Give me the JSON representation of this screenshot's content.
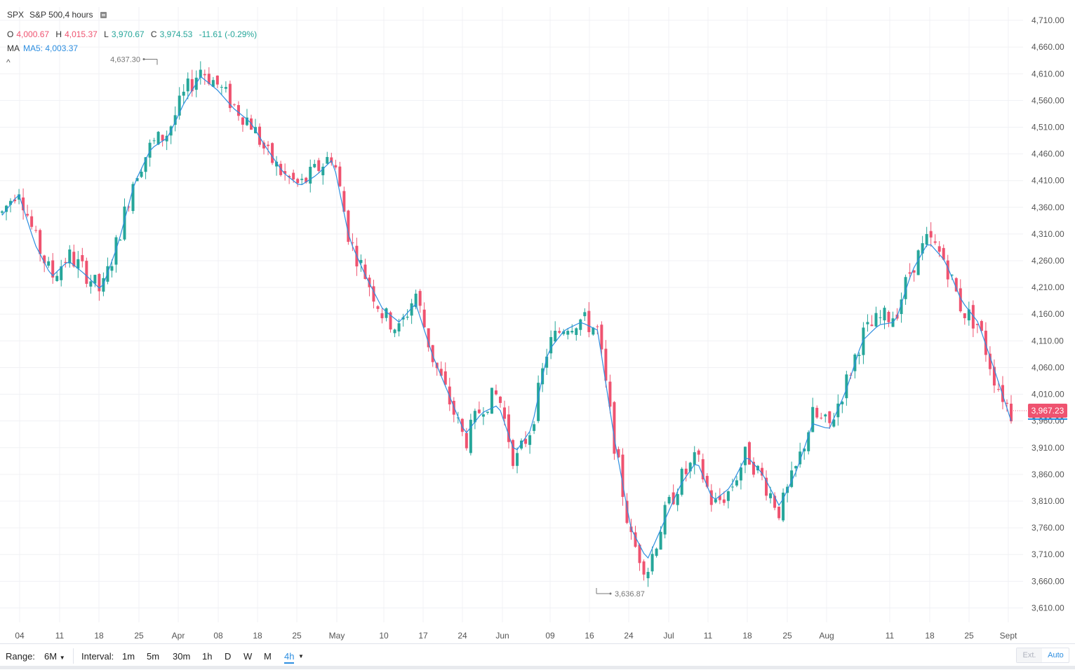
{
  "header": {
    "symbol": "SPX",
    "description": "S&P 500,4 hours"
  },
  "ohlc": {
    "o_label": "O",
    "o_value": "4,000.67",
    "h_label": "H",
    "h_value": "4,015.37",
    "l_label": "L",
    "l_value": "3,970.67",
    "c_label": "C",
    "c_value": "3,974.53",
    "change": "-11.61 (-0.29%)"
  },
  "ma": {
    "label": "MA",
    "value": "MA5: 4,003.37"
  },
  "collapse_icon": "^",
  "last_price": "3,967.23",
  "toolbar": {
    "range_label": "Range:",
    "range_value": "6M",
    "interval_label": "Interval:",
    "intervals": [
      "1m",
      "5m",
      "30m",
      "1h",
      "D",
      "W",
      "M",
      "4h"
    ],
    "active_interval": "4h",
    "ext_label": "Ext.",
    "auto_label": "Auto"
  },
  "colors": {
    "up": "#26a69a",
    "down": "#ef5370",
    "ma": "#2d8ee0",
    "grid": "#f0f1f4"
  },
  "chart_data": {
    "type": "candlestick",
    "title": "SPX S&P 500,4 hours",
    "y_ticks": [
      "4,710.00",
      "4,660.00",
      "4,610.00",
      "4,560.00",
      "4,510.00",
      "4,460.00",
      "4,410.00",
      "4,360.00",
      "4,310.00",
      "4,260.00",
      "4,210.00",
      "4,160.00",
      "4,110.00",
      "4,060.00",
      "4,010.00",
      "3,960.00",
      "3,910.00",
      "3,860.00",
      "3,810.00",
      "3,760.00",
      "3,710.00",
      "3,660.00",
      "3,610.00"
    ],
    "ylim": [
      3585,
      4728
    ],
    "x_ticks": [
      "04",
      "11",
      "18",
      "25",
      "Apr",
      "08",
      "18",
      "25",
      "May",
      "10",
      "17",
      "24",
      "Jun",
      "09",
      "16",
      "24",
      "Jul",
      "11",
      "18",
      "25",
      "Aug",
      "11",
      "18",
      "25",
      "Sept"
    ],
    "max_annotation": "4,637.30",
    "min_annotation": "3,636.87",
    "series": [
      {
        "name": "MA5",
        "type": "line",
        "key_points": [
          4345,
          4385,
          4290,
          4230,
          4260,
          4235,
          4205,
          4290,
          4405,
          4470,
          4490,
          4555,
          4605,
          4580,
          4545,
          4520,
          4470,
          4425,
          4400,
          4420,
          4450,
          4300,
          4230,
          4170,
          4145,
          4180,
          4085,
          4010,
          3935,
          3975,
          3990,
          3900,
          3945,
          4090,
          4130,
          4145,
          4130,
          3930,
          3760,
          3700,
          3770,
          3840,
          3885,
          3810,
          3835,
          3895,
          3860,
          3800,
          3865,
          3955,
          3945,
          4015,
          4110,
          4140,
          4145,
          4240,
          4295,
          4260,
          4185,
          4145,
          4055,
          3960
        ]
      },
      {
        "name": "SPX",
        "type": "candles",
        "key_points": [
          4350,
          4400,
          4300,
          4230,
          4270,
          4240,
          4200,
          4300,
          4420,
          4475,
          4500,
          4570,
          4620,
          4590,
          4550,
          4520,
          4460,
          4420,
          4400,
          4430,
          4460,
          4300,
          4230,
          4160,
          4130,
          4200,
          4080,
          4000,
          3920,
          3990,
          4010,
          3880,
          3950,
          4100,
          4140,
          4150,
          4130,
          3920,
          3740,
          3680,
          3780,
          3850,
          3890,
          3800,
          3830,
          3900,
          3850,
          3790,
          3870,
          3970,
          3950,
          4030,
          4120,
          4150,
          4160,
          4250,
          4300,
          4260,
          4170,
          4140,
          4040,
          3974
        ]
      }
    ]
  }
}
